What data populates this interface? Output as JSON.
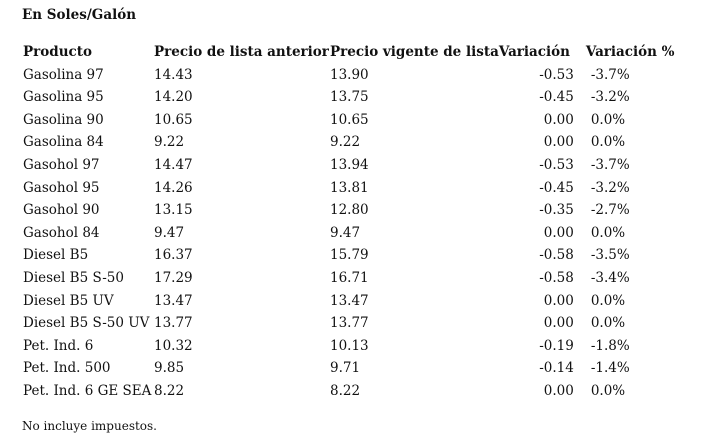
{
  "unit_title": "En Soles/Galón",
  "columns": [
    "Producto",
    "Precio de lista anterior",
    "Precio vigente de lista",
    "Variación",
    "Variación %"
  ],
  "rows": [
    [
      "Gasolina 97",
      "14.43",
      "13.90",
      "-0.53",
      "-3.7%"
    ],
    [
      "Gasolina 95",
      "14.20",
      "13.75",
      "-0.45",
      "-3.2%"
    ],
    [
      "Gasolina 90",
      "10.65",
      "10.65",
      "0.00",
      "0.0%"
    ],
    [
      "Gasolina 84",
      "9.22",
      "9.22",
      "0.00",
      "0.0%"
    ],
    [
      "Gasohol 97",
      "14.47",
      "13.94",
      "-0.53",
      "-3.7%"
    ],
    [
      "Gasohol 95",
      "14.26",
      "13.81",
      "-0.45",
      "-3.2%"
    ],
    [
      "Gasohol 90",
      "13.15",
      "12.80",
      "-0.35",
      "-2.7%"
    ],
    [
      "Gasohol 84",
      "9.47",
      "9.47",
      "0.00",
      "0.0%"
    ],
    [
      "Diesel B5",
      "16.37",
      "15.79",
      "-0.58",
      "-3.5%"
    ],
    [
      "Diesel B5 S-50",
      "17.29",
      "16.71",
      "-0.58",
      "-3.4%"
    ],
    [
      "Diesel B5 UV",
      "13.47",
      "13.47",
      "0.00",
      "0.0%"
    ],
    [
      "Diesel B5 S-50 UV",
      "13.77",
      "13.77",
      "0.00",
      "0.0%"
    ],
    [
      "Pet. Ind. 6",
      "10.32",
      "10.13",
      "-0.19",
      "-1.8%"
    ],
    [
      "Pet. Ind. 500",
      "9.85",
      "9.71",
      "-0.14",
      "-1.4%"
    ],
    [
      "Pet. Ind. 6 GE SEA",
      "8.22",
      "8.22",
      "0.00",
      "0.0%"
    ]
  ],
  "footnote": "No incluye impuestos."
}
